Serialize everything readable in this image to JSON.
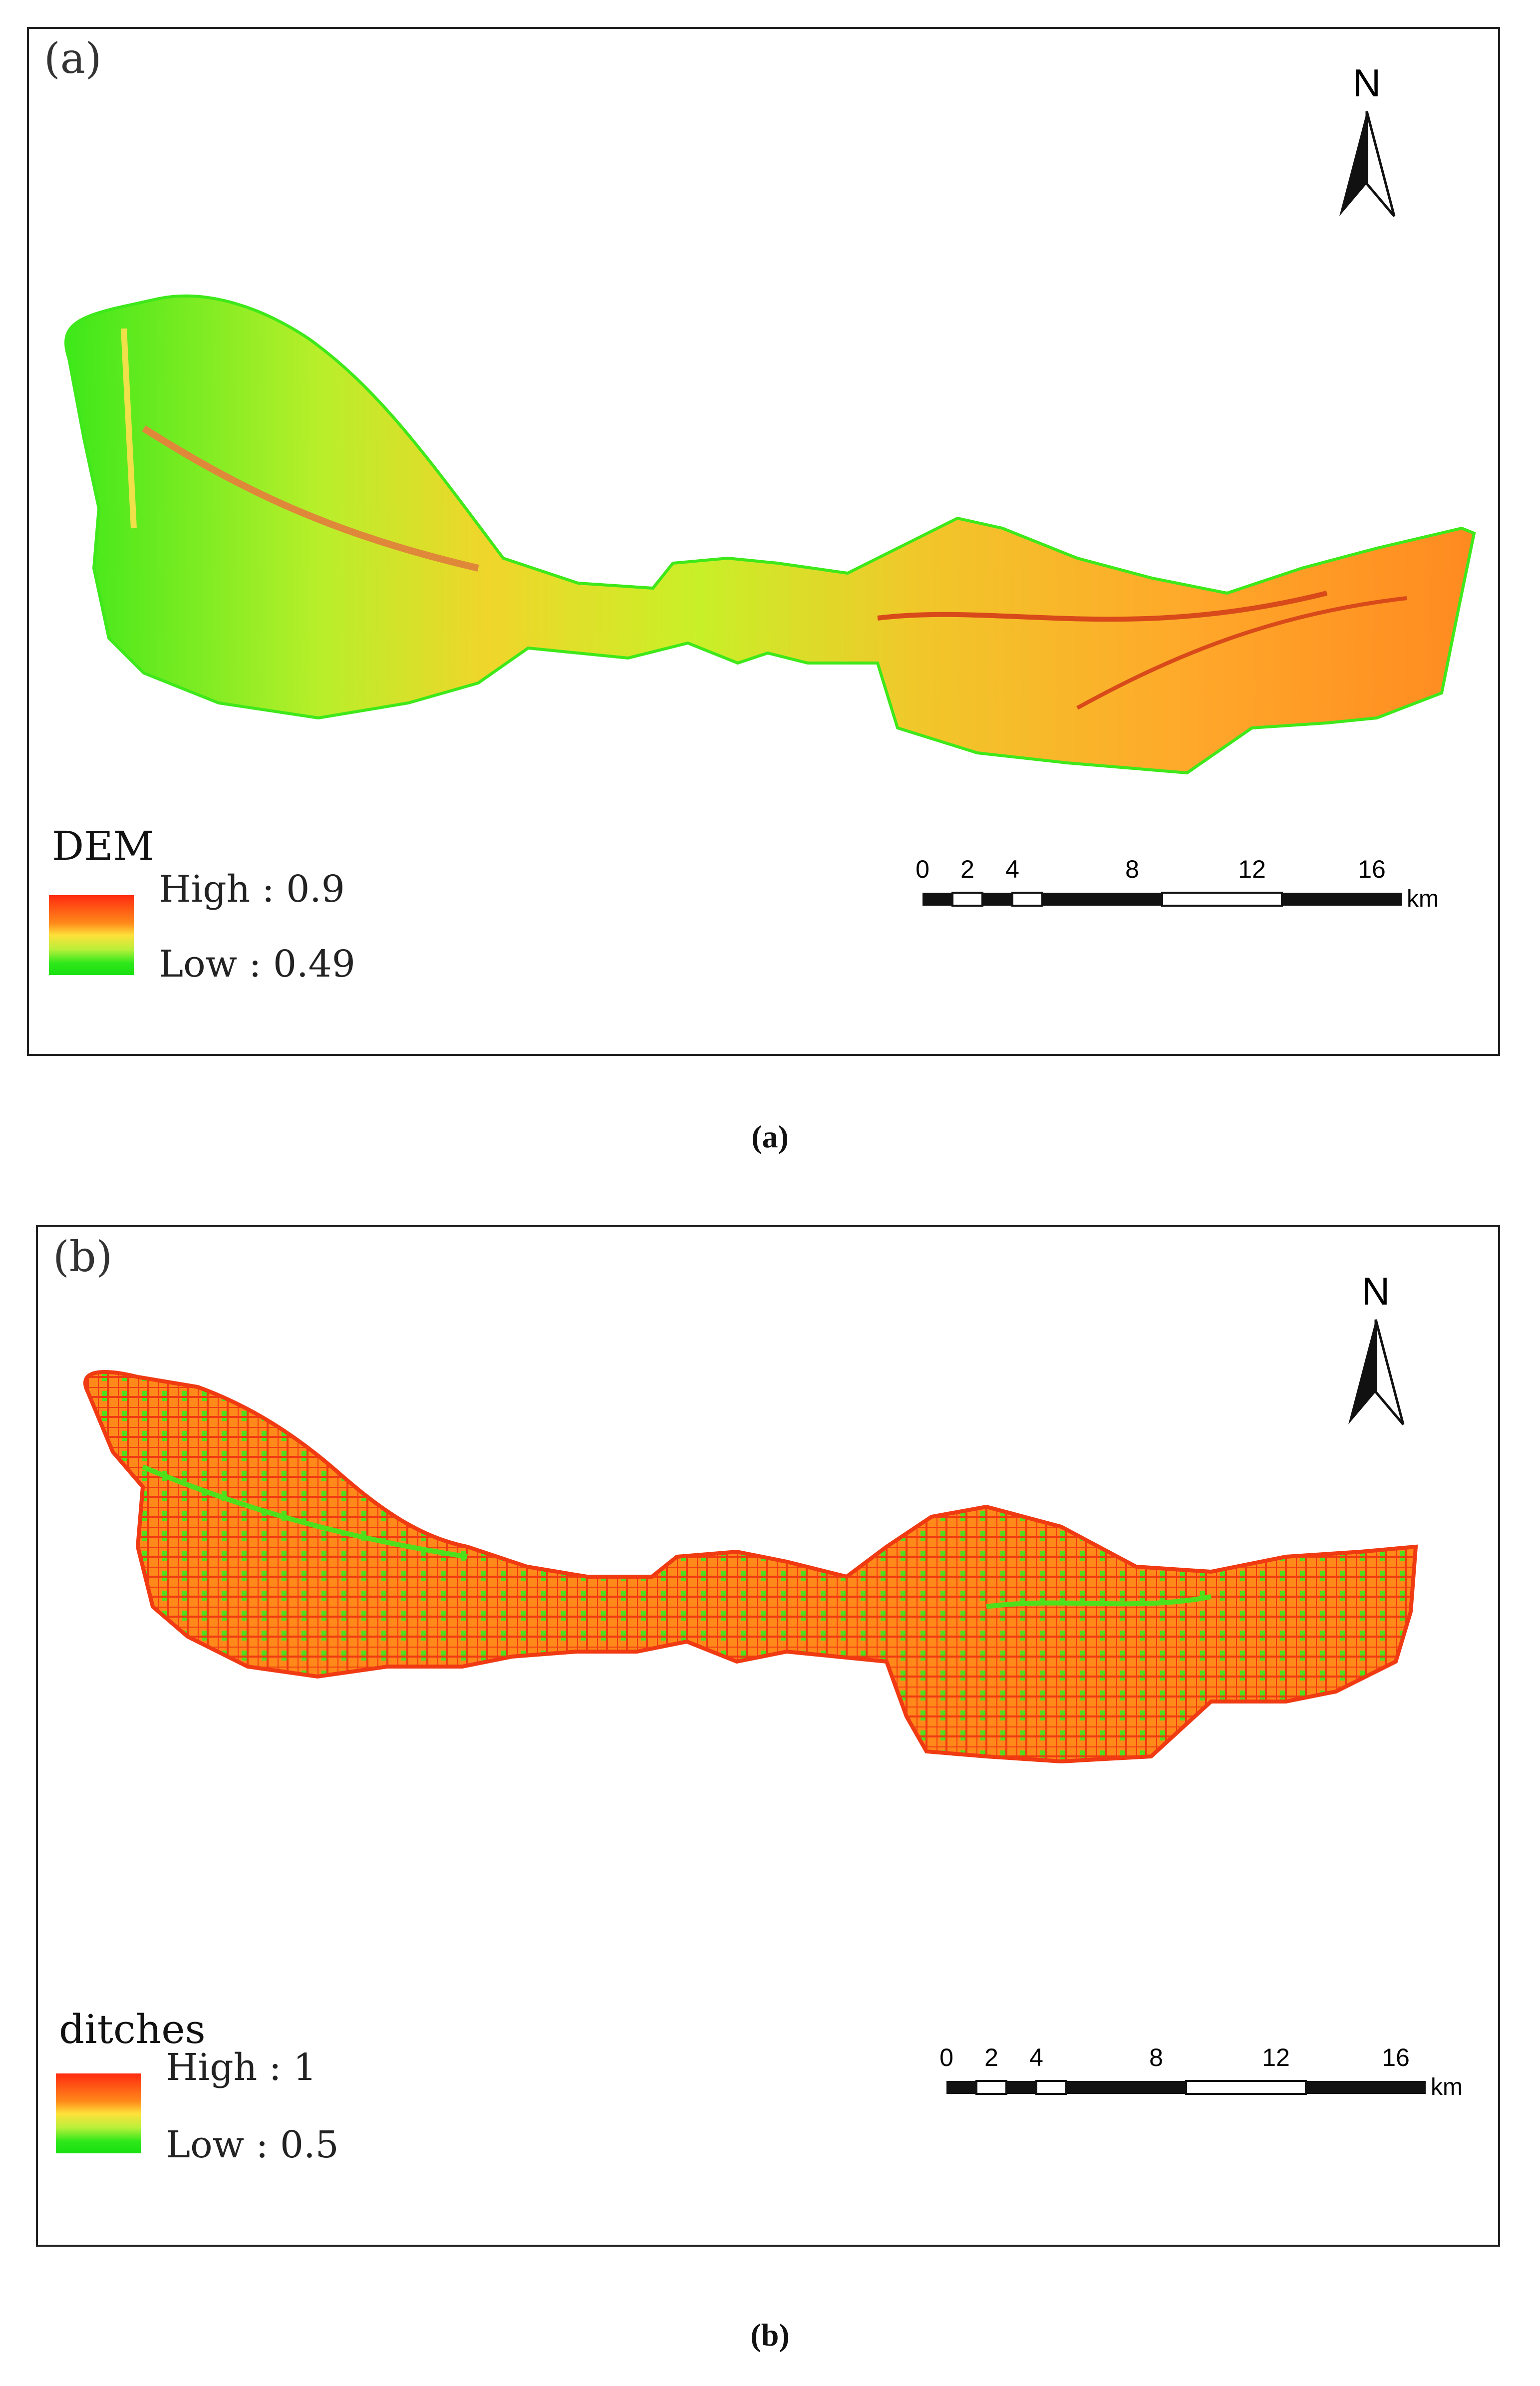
{
  "panels": [
    {
      "label": "(a)",
      "caption": "(a)",
      "north_label": "N",
      "legend": {
        "title": "DEM",
        "high": "High : 0.9",
        "low": "Low : 0.49",
        "ramp_colors": [
          "#ff2a10",
          "#ffe03a",
          "#18e010"
        ]
      },
      "scalebar": {
        "ticks": [
          "0",
          "2",
          "4",
          "8",
          "12",
          "16"
        ],
        "unit": "km"
      },
      "fill_colors": [
        "#c8f028",
        "#ffb82a",
        "#3ee81a"
      ]
    },
    {
      "label": "(b)",
      "caption": "(b)",
      "north_label": "N",
      "legend": {
        "title": "ditches",
        "high": "High : 1",
        "low": "Low : 0.5",
        "ramp_colors": [
          "#ff2a10",
          "#ffe03a",
          "#18e010"
        ]
      },
      "scalebar": {
        "ticks": [
          "0",
          "2",
          "4",
          "8",
          "12",
          "16"
        ],
        "unit": "km"
      },
      "fill_colors": [
        "#f25a18",
        "#ff8a1a",
        "#4ee01a"
      ]
    }
  ]
}
